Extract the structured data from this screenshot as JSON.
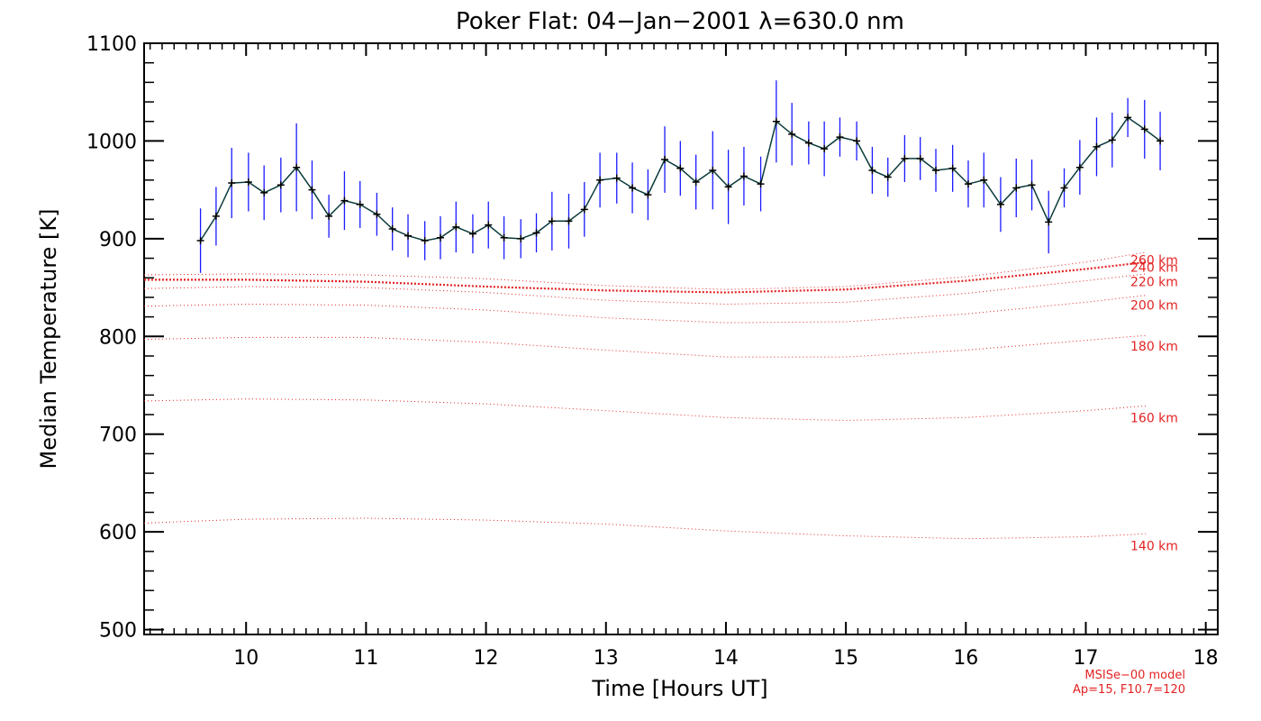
{
  "chart_data": {
    "type": "line",
    "title": "Poker Flat: 04−Jan−2001 λ=630.0 nm",
    "xlabel": "Time [Hours UT]",
    "ylabel": "Median Temperature [K]",
    "xlim": [
      9.15,
      18.1
    ],
    "ylim": [
      495,
      1100
    ],
    "x_ticks": [
      10,
      11,
      12,
      13,
      14,
      15,
      16,
      17,
      18
    ],
    "y_ticks": [
      500,
      600,
      700,
      800,
      900,
      1000,
      1100
    ],
    "colors": {
      "measurement_line": "#000000",
      "error_bars": "#1a1aff",
      "model_lines": "#e32222"
    },
    "measurements": {
      "name": "Median temperature",
      "x": [
        9.62,
        9.75,
        9.88,
        10.02,
        10.15,
        10.29,
        10.42,
        10.55,
        10.69,
        10.82,
        10.95,
        11.09,
        11.22,
        11.35,
        11.49,
        11.62,
        11.75,
        11.89,
        12.02,
        12.15,
        12.29,
        12.42,
        12.55,
        12.69,
        12.82,
        12.95,
        13.09,
        13.22,
        13.35,
        13.49,
        13.62,
        13.75,
        13.89,
        14.02,
        14.15,
        14.29,
        14.42,
        14.55,
        14.69,
        14.82,
        14.95,
        15.09,
        15.22,
        15.35,
        15.49,
        15.62,
        15.75,
        15.89,
        16.02,
        16.15,
        16.29,
        16.42,
        16.55,
        16.69,
        16.82,
        16.95,
        17.09,
        17.22,
        17.35,
        17.49,
        17.62
      ],
      "y": [
        898,
        923,
        957,
        958,
        947,
        955,
        973,
        950,
        923,
        939,
        935,
        925,
        910,
        903,
        898,
        901,
        912,
        905,
        914,
        901,
        900,
        906,
        918,
        918,
        930,
        960,
        962,
        952,
        945,
        981,
        972,
        958,
        970,
        953,
        964,
        956,
        1020,
        1007,
        998,
        992,
        1004,
        1000,
        970,
        963,
        982,
        982,
        970,
        972,
        956,
        960,
        935,
        952,
        955,
        917,
        952,
        973,
        994,
        1001,
        1024,
        1012,
        1000
      ],
      "errors": [
        33,
        30,
        36,
        30,
        28,
        28,
        45,
        30,
        22,
        30,
        24,
        22,
        22,
        22,
        20,
        22,
        26,
        20,
        24,
        22,
        20,
        20,
        30,
        28,
        28,
        28,
        26,
        26,
        26,
        34,
        28,
        28,
        40,
        38,
        30,
        28,
        42,
        32,
        22,
        28,
        20,
        20,
        24,
        20,
        24,
        22,
        22,
        24,
        24,
        28,
        28,
        30,
        26,
        32,
        20,
        28,
        30,
        28,
        20,
        30,
        30
      ]
    },
    "model_series": [
      {
        "name": "140 km",
        "x": [
          9.15,
          10.0,
          11.0,
          12.0,
          13.0,
          14.0,
          15.0,
          16.0,
          17.0,
          17.5
        ],
        "values": [
          609,
          613,
          614,
          612,
          608,
          601,
          596,
          593,
          595,
          598
        ]
      },
      {
        "name": "160 km",
        "x": [
          9.15,
          10.0,
          11.0,
          12.0,
          13.0,
          14.0,
          15.0,
          16.0,
          17.0,
          17.5
        ],
        "values": [
          734,
          736,
          735,
          731,
          724,
          717,
          714,
          717,
          724,
          729
        ]
      },
      {
        "name": "180 km",
        "x": [
          9.15,
          10.0,
          11.0,
          12.0,
          13.0,
          14.0,
          15.0,
          16.0,
          17.0,
          17.5
        ],
        "values": [
          797,
          799,
          799,
          794,
          786,
          779,
          779,
          786,
          796,
          801
        ]
      },
      {
        "name": "200 km",
        "x": [
          9.15,
          10.0,
          11.0,
          12.0,
          13.0,
          14.0,
          15.0,
          16.0,
          17.0,
          17.5
        ],
        "values": [
          831,
          833,
          832,
          827,
          819,
          814,
          815,
          823,
          835,
          842
        ]
      },
      {
        "name": "220 km",
        "x": [
          9.15,
          10.0,
          11.0,
          12.0,
          13.0,
          14.0,
          15.0,
          16.0,
          17.0,
          17.5
        ],
        "values": [
          849,
          851,
          850,
          845,
          837,
          833,
          835,
          844,
          857,
          864
        ]
      },
      {
        "name": "240 km",
        "x": [
          9.15,
          10.0,
          11.0,
          12.0,
          13.0,
          14.0,
          15.0,
          16.0,
          17.0,
          17.5
        ],
        "values": [
          858,
          858,
          856,
          851,
          847,
          845,
          848,
          857,
          869,
          876
        ]
      },
      {
        "name": "260 km",
        "x": [
          9.15,
          10.0,
          11.0,
          12.0,
          13.0,
          14.0,
          15.0,
          16.0,
          17.0,
          17.5
        ],
        "values": [
          863,
          864,
          863,
          859,
          852,
          848,
          851,
          861,
          876,
          886
        ]
      }
    ],
    "model_label_values": [
      586,
      717,
      790,
      832,
      856,
      871,
      878
    ],
    "note_lines": [
      "MSISe−00 model",
      "Ap=15, F10.7=120"
    ]
  }
}
